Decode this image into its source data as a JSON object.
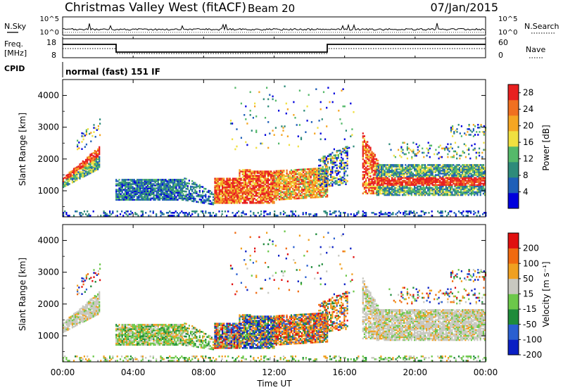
{
  "header": {
    "station": "Christmas Valley West (fitACF)",
    "beam": "Beam 20",
    "date": "07/Jan/2015"
  },
  "summary": {
    "nsky_label": "N.Sky",
    "nsearch_label": "N.Search",
    "nsky_ticks": [
      "10^5",
      "10^0"
    ],
    "nsearch_ticks": [
      "10^5",
      "10^0"
    ],
    "freq_label_1": "Freq.",
    "freq_label_2": "[MHz]",
    "freq_ticks": [
      "18",
      "8"
    ],
    "nave_label": "Nave",
    "nave_ticks": [
      "60",
      "0"
    ],
    "cpid_label": "CPID",
    "cpid_value": "normal (fast) 151 IF"
  },
  "chart_data": [
    {
      "type": "heatmap",
      "panel": "power",
      "ylabel": "Slant Range [km]",
      "y_ticks": [
        "1000",
        "2000",
        "3000",
        "4000"
      ],
      "ylim": [
        180,
        4500
      ],
      "xlim_hours": [
        0,
        24
      ],
      "colorbar_label": "Power [dB]",
      "colorbar_ticks": [
        "28",
        "24",
        "20",
        "16",
        "12",
        "8",
        "4"
      ],
      "colorbar_range": [
        0,
        30
      ],
      "colors": [
        "#0000dd",
        "#1e5fb8",
        "#2e8b7a",
        "#55b96a",
        "#f0e040",
        "#f5a623",
        "#f07020",
        "#e82020"
      ]
    },
    {
      "type": "heatmap",
      "panel": "velocity",
      "ylabel": "Slant Range [km]",
      "y_ticks": [
        "1000",
        "2000",
        "3000",
        "4000"
      ],
      "ylim": [
        180,
        4500
      ],
      "xlim_hours": [
        0,
        24
      ],
      "colorbar_label": "Velocity [m s⁻¹]",
      "colorbar_ticks": [
        "200",
        "100",
        "50",
        "15",
        "-15",
        "-50",
        "-100",
        "-200"
      ],
      "colors": [
        "#0a1fc4",
        "#2a5fd0",
        "#1e8b3a",
        "#6cc84a",
        "#c8c8c0",
        "#f0a020",
        "#f06a10",
        "#e01010"
      ]
    }
  ],
  "x_axis": {
    "ticks": [
      "00:00",
      "04:00",
      "08:00",
      "12:00",
      "16:00",
      "20:00",
      "00:00"
    ],
    "label": "Time UT"
  }
}
